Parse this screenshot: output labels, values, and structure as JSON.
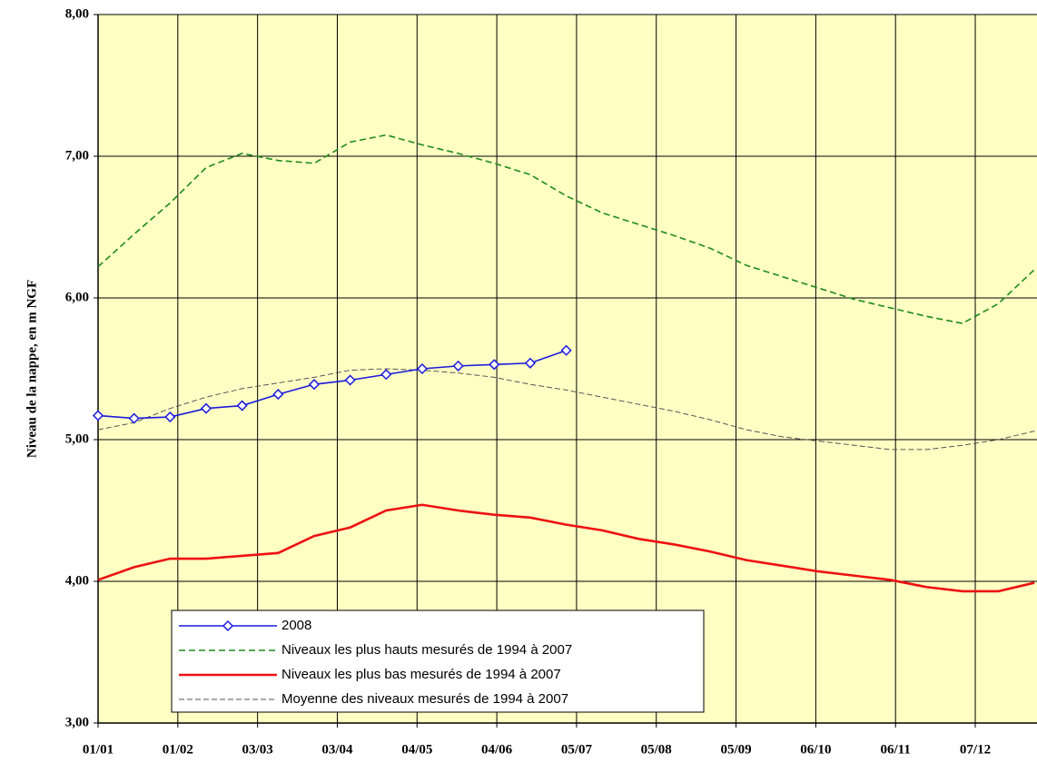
{
  "chart_data": {
    "type": "line",
    "y_label": "Niveau de la nappe, en m NGF",
    "xlim": [
      0,
      365
    ],
    "xticks": [
      {
        "value": 0,
        "label": "01/01"
      },
      {
        "value": 31,
        "label": "01/02"
      },
      {
        "value": 62,
        "label": "03/03"
      },
      {
        "value": 93,
        "label": "03/04"
      },
      {
        "value": 124,
        "label": "04/05"
      },
      {
        "value": 155,
        "label": "04/06"
      },
      {
        "value": 186,
        "label": "05/07"
      },
      {
        "value": 217,
        "label": "05/08"
      },
      {
        "value": 248,
        "label": "05/09"
      },
      {
        "value": 279,
        "label": "06/10"
      },
      {
        "value": 310,
        "label": "06/11"
      },
      {
        "value": 341,
        "label": "07/12"
      }
    ],
    "ylim": [
      3,
      8
    ],
    "yticks": [
      {
        "value": 3,
        "label": "3,00"
      },
      {
        "value": 4,
        "label": "4,00"
      },
      {
        "value": 5,
        "label": "5,00"
      },
      {
        "value": 6,
        "label": "6,00"
      },
      {
        "value": 7,
        "label": "7,00"
      },
      {
        "value": 8,
        "label": "8,00"
      }
    ],
    "grid": true,
    "legend": "lower left",
    "x": [
      0,
      14,
      28,
      42,
      56,
      70,
      84,
      98,
      112,
      126,
      140,
      154,
      168,
      182,
      196,
      210,
      224,
      238,
      252,
      266,
      280,
      294,
      308,
      322,
      336,
      350,
      364
    ],
    "series": [
      {
        "name": "2008",
        "color": "#1a1adc",
        "line_style": "solid",
        "marker": "diamond",
        "values": [
          5.17,
          5.15,
          5.16,
          5.22,
          5.24,
          5.32,
          5.39,
          5.42,
          5.46,
          5.5,
          5.52,
          5.53,
          5.54,
          5.63,
          null,
          null,
          null,
          null,
          null,
          null,
          null,
          null,
          null,
          null,
          null,
          null,
          null
        ]
      },
      {
        "name": "Niveaux les plus hauts mesurés de 1994 à 2007",
        "color": "#1e8a1e",
        "line_style": "dashed",
        "values": [
          6.22,
          6.45,
          6.67,
          6.92,
          7.02,
          6.97,
          6.95,
          7.1,
          7.15,
          7.08,
          7.02,
          6.95,
          6.87,
          6.72,
          6.6,
          6.52,
          6.44,
          6.35,
          6.23,
          6.15,
          6.07,
          5.99,
          5.93,
          5.87,
          5.82,
          5.96,
          6.2
        ]
      },
      {
        "name": "Niveaux les plus bas mesurés de 1994 à 2007",
        "color": "#ee1111",
        "line_style": "solid",
        "values": [
          4.01,
          4.1,
          4.16,
          4.16,
          4.18,
          4.2,
          4.32,
          4.38,
          4.5,
          4.54,
          4.5,
          4.47,
          4.45,
          4.4,
          4.36,
          4.3,
          4.26,
          4.21,
          4.15,
          4.11,
          4.07,
          4.04,
          4.01,
          3.96,
          3.93,
          3.93,
          3.99
        ]
      },
      {
        "name": "Moyenne des niveaux mesurés de 1994 à 2007",
        "color": "#555555",
        "line_style": "thin-dashed",
        "values": [
          5.07,
          5.12,
          5.22,
          5.3,
          5.36,
          5.4,
          5.44,
          5.49,
          5.5,
          5.49,
          5.47,
          5.44,
          5.39,
          5.35,
          5.3,
          5.25,
          5.2,
          5.14,
          5.07,
          5.02,
          4.99,
          4.96,
          4.93,
          4.93,
          4.96,
          5.0,
          5.06
        ]
      }
    ]
  }
}
